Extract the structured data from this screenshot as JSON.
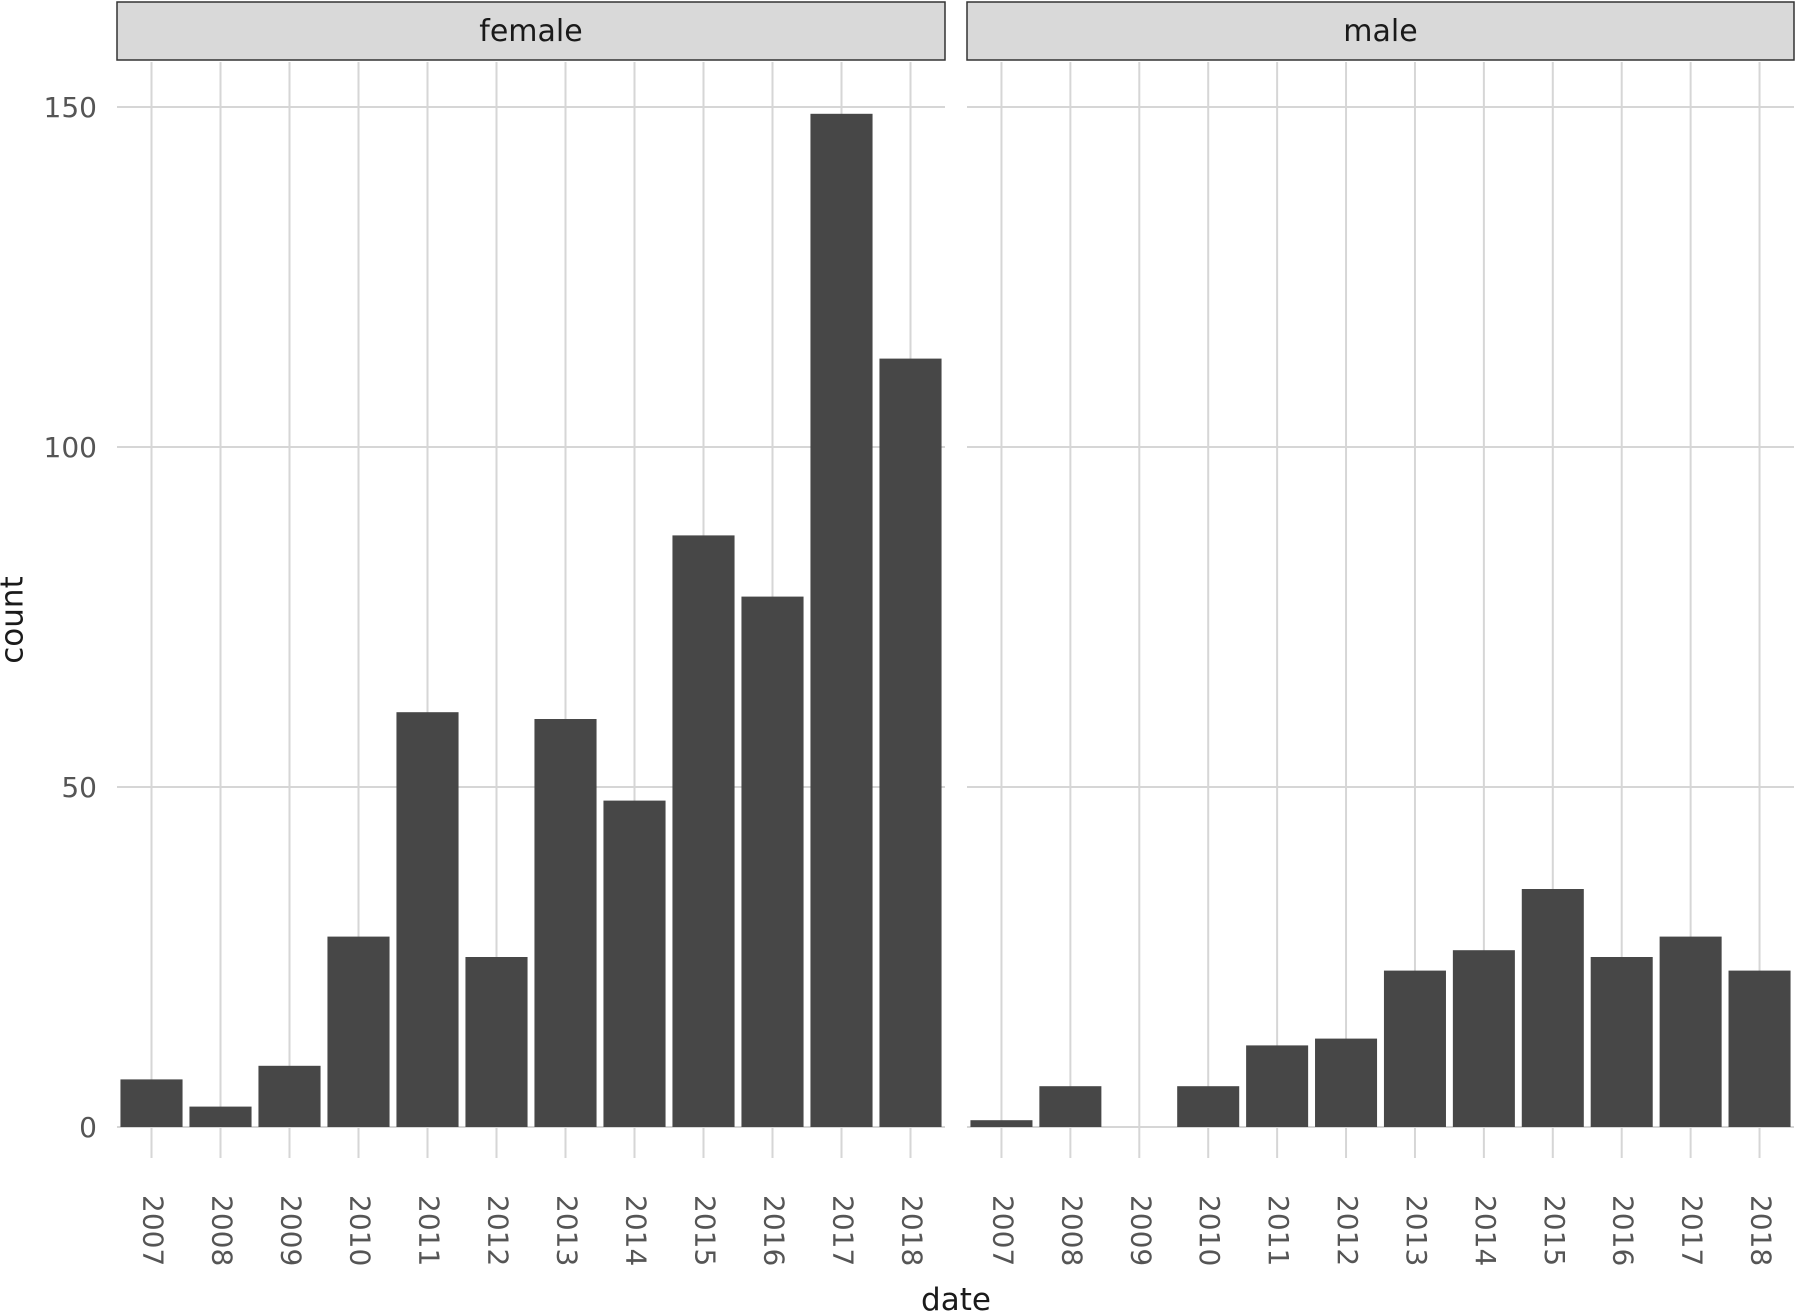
{
  "chart_data": {
    "type": "bar",
    "facet_layout": "1 row x 2 columns, shared y axis",
    "xlabel": "date",
    "ylabel": "count",
    "categories": [
      "2007",
      "2008",
      "2009",
      "2010",
      "2011",
      "2012",
      "2013",
      "2014",
      "2015",
      "2016",
      "2017",
      "2018"
    ],
    "y_ticks": [
      0,
      50,
      100,
      150
    ],
    "ylim": [
      0,
      157
    ],
    "grid": "major gridlines on both axes",
    "tick_label_rotation": "x tick labels rotated 90 degrees clockwise",
    "bar_color": "#474747",
    "strip_fill": "#d9d9d9",
    "grid_color": "#d6d6d6",
    "panels": [
      {
        "label": "female",
        "values": [
          7,
          3,
          9,
          28,
          61,
          25,
          60,
          48,
          87,
          78,
          149,
          113
        ]
      },
      {
        "label": "male",
        "values": [
          1,
          6,
          0,
          6,
          12,
          13,
          23,
          26,
          35,
          25,
          28,
          23
        ]
      }
    ]
  }
}
